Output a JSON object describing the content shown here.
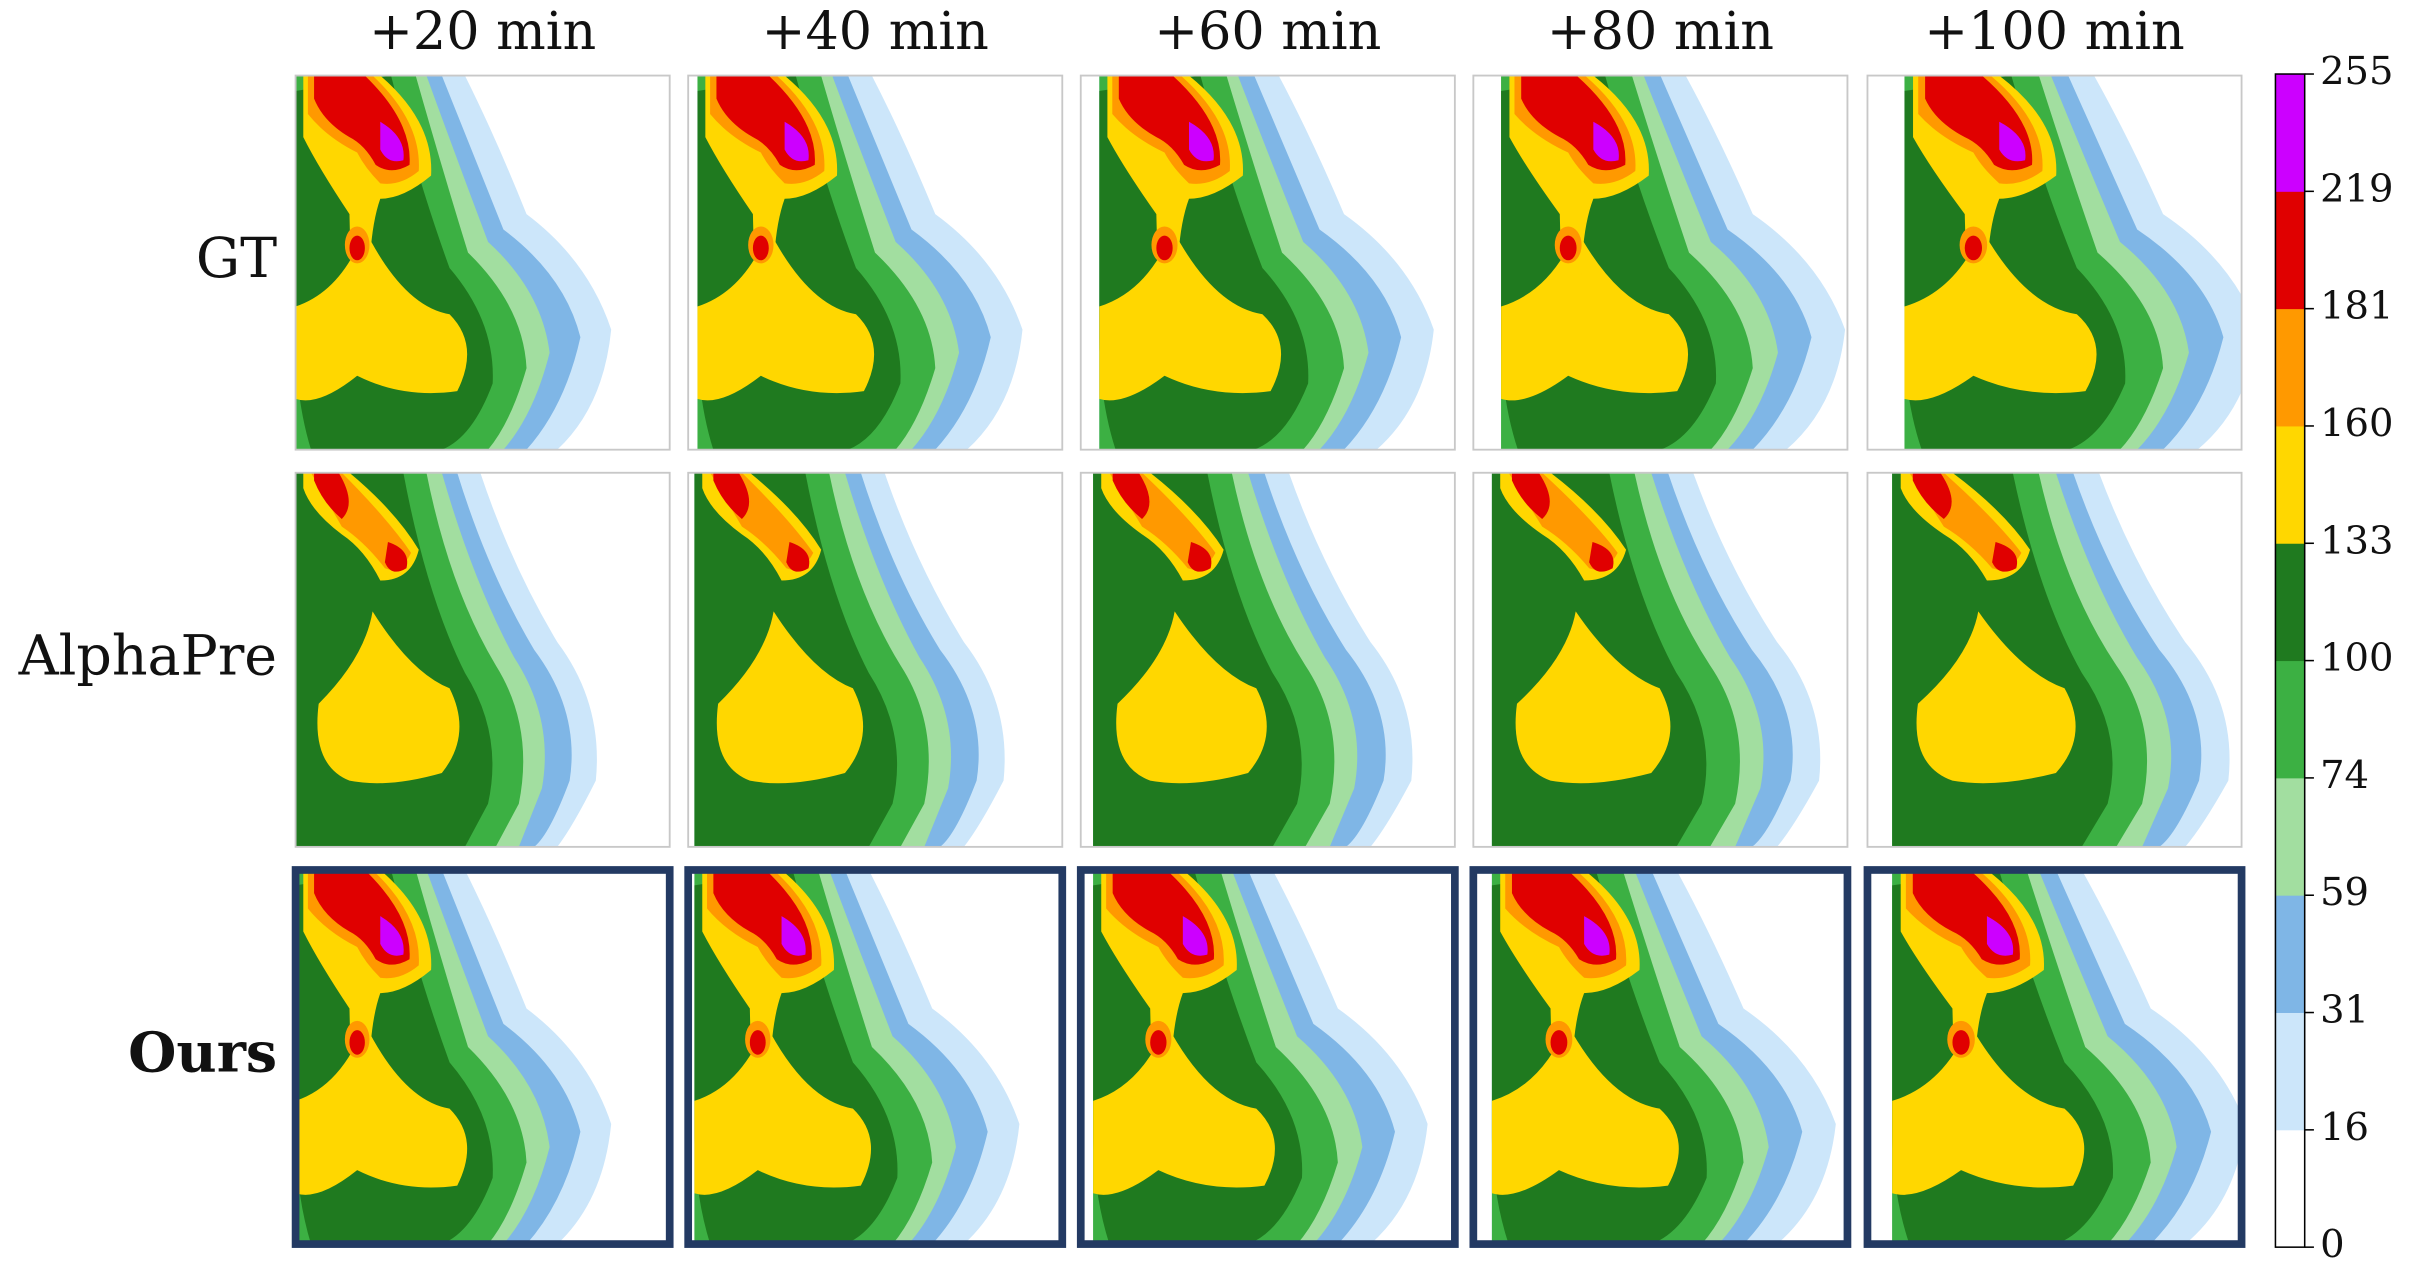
{
  "columns": [
    "+20 min",
    "+40 min",
    "+60 min",
    "+80 min",
    "+100 min"
  ],
  "rows": [
    "GT",
    "AlphaPre",
    "Ours"
  ],
  "colorbar": {
    "ticks": [
      0,
      16,
      31,
      59,
      74,
      100,
      133,
      160,
      181,
      219,
      255
    ],
    "colors": [
      "#ffffff",
      "#cce6fa",
      "#7fb6e6",
      "#a2dea0",
      "#3cb043",
      "#1f7a1f",
      "#ffd700",
      "#ff9900",
      "#e00000",
      "#cc00ff"
    ]
  }
}
